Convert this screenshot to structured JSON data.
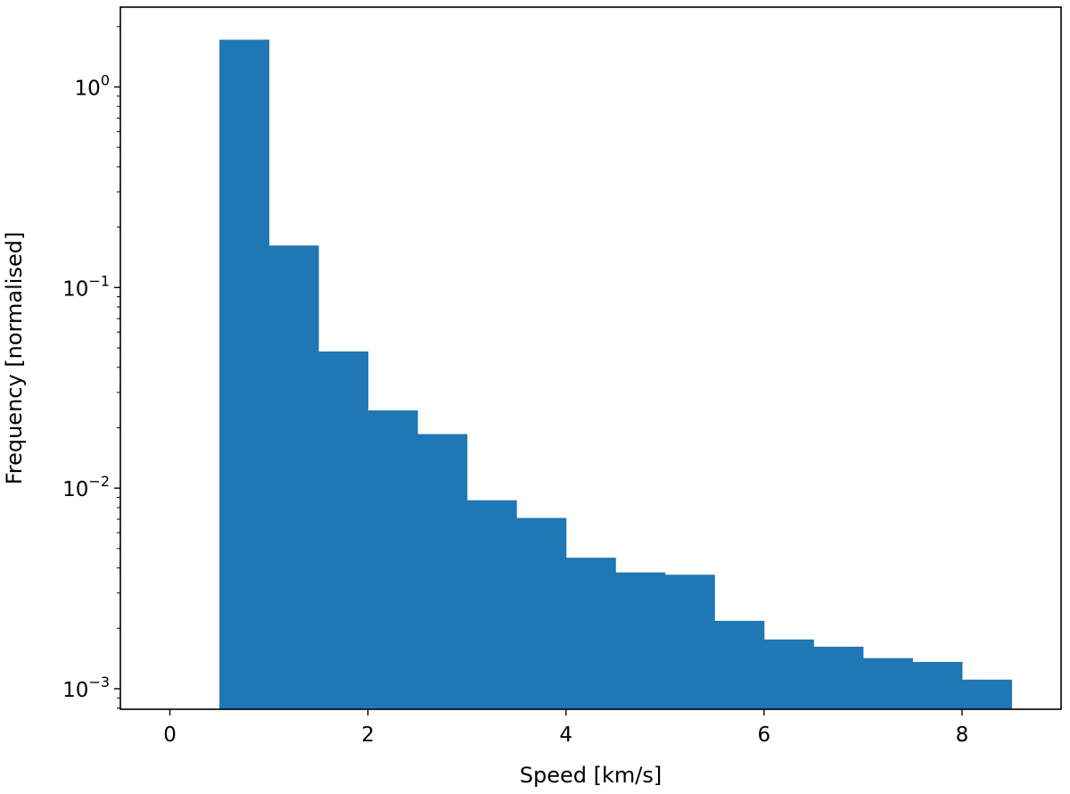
{
  "chart_data": {
    "type": "bar",
    "histogram": true,
    "bin_edges": [
      0.5,
      1.0,
      1.5,
      2.0,
      2.5,
      3.0,
      3.5,
      4.0,
      4.5,
      5.0,
      5.5,
      6.0,
      6.5,
      7.0,
      7.5,
      8.0,
      8.5
    ],
    "values": [
      1.72,
      0.162,
      0.048,
      0.0244,
      0.0186,
      0.0087,
      0.0071,
      0.0045,
      0.0038,
      0.0037,
      0.00218,
      0.00176,
      0.00162,
      0.00142,
      0.00136,
      0.00111
    ],
    "bar_color": "#1f77b4",
    "xlabel": "Speed [km/s]",
    "ylabel": "Frequency [normalised]",
    "xlim": [
      -0.5,
      9.0
    ],
    "ylim": [
      0.00079,
      2.5
    ],
    "yscale": "log",
    "grid": false,
    "x_ticks": [
      0,
      2,
      4,
      6,
      8
    ],
    "x_tick_labels": [
      "0",
      "2",
      "4",
      "6",
      "8"
    ],
    "y_ticks": [
      0.001,
      0.01,
      0.1,
      1
    ],
    "y_tick_labels": [
      {
        "base": "10",
        "exp": "−3"
      },
      {
        "base": "10",
        "exp": "−2"
      },
      {
        "base": "10",
        "exp": "−1"
      },
      {
        "base": "10",
        "exp": "0"
      }
    ]
  }
}
